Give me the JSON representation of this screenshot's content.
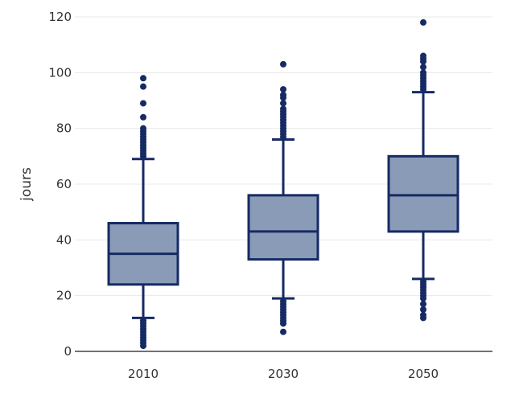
{
  "chart_data": {
    "type": "box",
    "title": "",
    "xlabel": "",
    "ylabel": "jours",
    "ylim": [
      0,
      120
    ],
    "y_ticks": [
      0,
      20,
      40,
      60,
      80,
      100,
      120
    ],
    "categories": [
      "2010",
      "2030",
      "2050"
    ],
    "grid": true,
    "colors": {
      "box_fill": "#8a9bb8",
      "box_stroke": "#162a63",
      "grid": "#e8e8e8"
    },
    "boxes": [
      {
        "category": "2010",
        "whisker_low": 12,
        "q1": 24,
        "median": 35,
        "q3": 46,
        "whisker_high": 69,
        "outliers": [
          2,
          3,
          4,
          5,
          6,
          7,
          8,
          9,
          10,
          11,
          70,
          71,
          72,
          73,
          74,
          75,
          76,
          77,
          78,
          79,
          80,
          84,
          89,
          95,
          98
        ]
      },
      {
        "category": "2030",
        "whisker_low": 19,
        "q1": 33,
        "median": 43,
        "q3": 56,
        "whisker_high": 76,
        "outliers": [
          7,
          10,
          11,
          12,
          13,
          14,
          15,
          16,
          17,
          18,
          77,
          78,
          79,
          80,
          81,
          82,
          83,
          84,
          85,
          86,
          87,
          89,
          91,
          92,
          94,
          103
        ]
      },
      {
        "category": "2050",
        "whisker_low": 26,
        "q1": 43,
        "median": 56,
        "q3": 70,
        "whisker_high": 93,
        "outliers": [
          12,
          13,
          15,
          17,
          19,
          20,
          21,
          22,
          23,
          24,
          25,
          94,
          95,
          96,
          97,
          98,
          99,
          100,
          102,
          104,
          105,
          106,
          118
        ]
      }
    ]
  }
}
